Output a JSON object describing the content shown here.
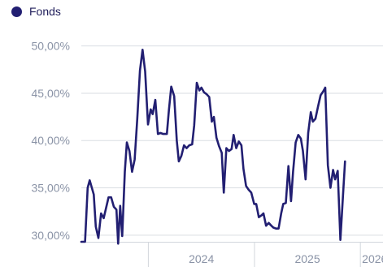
{
  "legend": {
    "label": "Fonds"
  },
  "colors": {
    "series": "#221f72",
    "grid": "#d9dde2",
    "tick_text": "#8a93a6",
    "axis": "#d2d6dc"
  },
  "chart_data": {
    "type": "line",
    "title": "",
    "xlabel": "",
    "ylabel": "",
    "y_ticks": [
      "30,00%",
      "35,00%",
      "40,00%",
      "45,00%",
      "50,00%"
    ],
    "y_tick_values": [
      30,
      35,
      40,
      45,
      50
    ],
    "x_ticks": [
      "2024",
      "2025",
      "2026"
    ],
    "x_tick_values": [
      "2024-01-01",
      "2025-01-01",
      "2026-01-01"
    ],
    "ylim": [
      29.3,
      51
    ],
    "xlim": [
      "2023-05-15",
      "2026-03-20"
    ],
    "grid": {
      "horizontal": true,
      "vertical": false
    },
    "legend_position": "top-left",
    "series": [
      {
        "name": "Fonds",
        "points": [
          [
            "2023-05-15",
            29.3
          ],
          [
            "2023-05-28",
            29.3
          ],
          [
            "2023-06-06",
            35.0
          ],
          [
            "2023-06-13",
            35.8
          ],
          [
            "2023-06-27",
            34.3
          ],
          [
            "2023-07-04",
            30.9
          ],
          [
            "2023-07-13",
            29.7
          ],
          [
            "2023-07-22",
            32.3
          ],
          [
            "2023-07-31",
            31.8
          ],
          [
            "2023-08-17",
            34.0
          ],
          [
            "2023-08-26",
            34.0
          ],
          [
            "2023-09-04",
            33.0
          ],
          [
            "2023-09-13",
            32.7
          ],
          [
            "2023-09-19",
            29.1
          ],
          [
            "2023-09-26",
            33.1
          ],
          [
            "2023-10-03",
            29.9
          ],
          [
            "2023-10-12",
            36.7
          ],
          [
            "2023-10-19",
            39.8
          ],
          [
            "2023-10-28",
            38.9
          ],
          [
            "2023-11-06",
            36.7
          ],
          [
            "2023-11-15",
            38.0
          ],
          [
            "2023-11-24",
            42.3
          ],
          [
            "2023-12-03",
            47.4
          ],
          [
            "2023-12-12",
            49.6
          ],
          [
            "2023-12-21",
            47.3
          ],
          [
            "2023-12-31",
            41.7
          ],
          [
            "2024-01-09",
            43.3
          ],
          [
            "2024-01-16",
            42.8
          ],
          [
            "2024-01-25",
            44.3
          ],
          [
            "2024-02-03",
            40.7
          ],
          [
            "2024-02-12",
            40.8
          ],
          [
            "2024-02-21",
            40.7
          ],
          [
            "2024-03-05",
            40.7
          ],
          [
            "2024-03-12",
            43.2
          ],
          [
            "2024-03-20",
            45.7
          ],
          [
            "2024-03-30",
            44.7
          ],
          [
            "2024-04-08",
            40.0
          ],
          [
            "2024-04-15",
            37.8
          ],
          [
            "2024-04-24",
            38.4
          ],
          [
            "2024-05-03",
            39.5
          ],
          [
            "2024-05-12",
            39.2
          ],
          [
            "2024-05-21",
            39.5
          ],
          [
            "2024-05-31",
            39.6
          ],
          [
            "2024-06-07",
            41.6
          ],
          [
            "2024-06-16",
            46.1
          ],
          [
            "2024-06-25",
            45.3
          ],
          [
            "2024-07-02",
            45.6
          ],
          [
            "2024-07-11",
            45.1
          ],
          [
            "2024-07-20",
            44.9
          ],
          [
            "2024-07-29",
            44.6
          ],
          [
            "2024-08-07",
            42.0
          ],
          [
            "2024-08-14",
            42.5
          ],
          [
            "2024-08-23",
            40.3
          ],
          [
            "2024-09-01",
            39.4
          ],
          [
            "2024-09-10",
            38.7
          ],
          [
            "2024-09-17",
            34.5
          ],
          [
            "2024-09-26",
            39.2
          ],
          [
            "2024-10-05",
            38.9
          ],
          [
            "2024-10-14",
            39.1
          ],
          [
            "2024-10-21",
            40.6
          ],
          [
            "2024-10-30",
            39.2
          ],
          [
            "2024-11-08",
            39.9
          ],
          [
            "2024-11-17",
            39.5
          ],
          [
            "2024-11-24",
            37.0
          ],
          [
            "2024-12-03",
            35.2
          ],
          [
            "2024-12-12",
            34.8
          ],
          [
            "2024-12-21",
            34.5
          ],
          [
            "2024-12-31",
            33.3
          ],
          [
            "2025-01-07",
            33.3
          ],
          [
            "2025-01-16",
            31.9
          ],
          [
            "2025-01-25",
            32.1
          ],
          [
            "2025-02-01",
            32.3
          ],
          [
            "2025-02-10",
            31.0
          ],
          [
            "2025-02-19",
            31.3
          ],
          [
            "2025-02-28",
            31.0
          ],
          [
            "2025-03-07",
            30.8
          ],
          [
            "2025-03-16",
            30.7
          ],
          [
            "2025-03-25",
            30.7
          ],
          [
            "2025-04-03",
            32.3
          ],
          [
            "2025-04-10",
            33.3
          ],
          [
            "2025-04-19",
            33.4
          ],
          [
            "2025-04-28",
            37.3
          ],
          [
            "2025-05-07",
            33.6
          ],
          [
            "2025-05-14",
            36.7
          ],
          [
            "2025-05-23",
            39.8
          ],
          [
            "2025-06-01",
            40.6
          ],
          [
            "2025-06-10",
            40.2
          ],
          [
            "2025-06-17",
            38.9
          ],
          [
            "2025-06-26",
            35.9
          ],
          [
            "2025-07-05",
            40.8
          ],
          [
            "2025-07-14",
            43.0
          ],
          [
            "2025-07-21",
            42.0
          ],
          [
            "2025-07-30",
            42.3
          ],
          [
            "2025-08-08",
            43.6
          ],
          [
            "2025-08-17",
            44.8
          ],
          [
            "2025-08-26",
            45.2
          ],
          [
            "2025-09-02",
            45.6
          ],
          [
            "2025-09-11",
            37.4
          ],
          [
            "2025-09-20",
            35.0
          ],
          [
            "2025-09-29",
            36.9
          ],
          [
            "2025-10-06",
            35.9
          ],
          [
            "2025-10-15",
            36.8
          ],
          [
            "2025-10-24",
            29.5
          ],
          [
            "2025-11-02",
            34.2
          ],
          [
            "2025-11-09",
            37.8
          ]
        ]
      }
    ]
  }
}
